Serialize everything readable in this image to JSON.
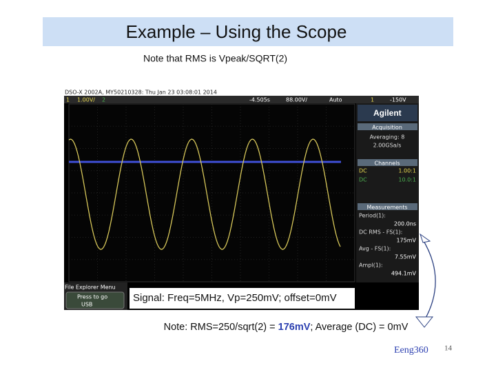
{
  "header": {
    "title": "Example – Using the Scope",
    "note": "Note that  RMS is Vpeak/SQRT(2)"
  },
  "scope": {
    "top_bar": [
      "DSO-X 2002A, MY50210328: Thu Jan 23 03:08:01 2014"
    ],
    "status": [
      "1",
      "1.00V/",
      "2",
      "-4.505s",
      "88.00V/",
      "Auto",
      "1",
      "-150V"
    ],
    "brand": "Agilent",
    "acquisition": {
      "title": "Acquisition",
      "lines": [
        "Averaging: 8",
        "2.00GSa/s"
      ]
    },
    "channels": {
      "title": "Channels",
      "rows": [
        [
          "DC",
          "1.00:1"
        ],
        [
          "DC",
          "10.0:1"
        ]
      ]
    },
    "measurements": {
      "title": "Measurements",
      "items": [
        [
          "Period(1):",
          "200.0ns"
        ],
        [
          "DC RMS - FS(1):",
          "175mV"
        ],
        [
          "Avg - FS(1):",
          "7.55mV"
        ],
        [
          "Ampl(1):",
          "494.1mV"
        ]
      ]
    },
    "menu": {
      "title": "File Explorer Menu",
      "button": [
        "Press to go",
        "USB"
      ]
    }
  },
  "caption": "Signal: Freq=5MHz, Vp=250mV; offset=0mV",
  "bottom_note": [
    "Note: RMS=250/sqrt(2) = ",
    "176mV",
    "; Average (DC) = 0mV"
  ],
  "footer": {
    "course": "Eeng360",
    "page": "14"
  }
}
